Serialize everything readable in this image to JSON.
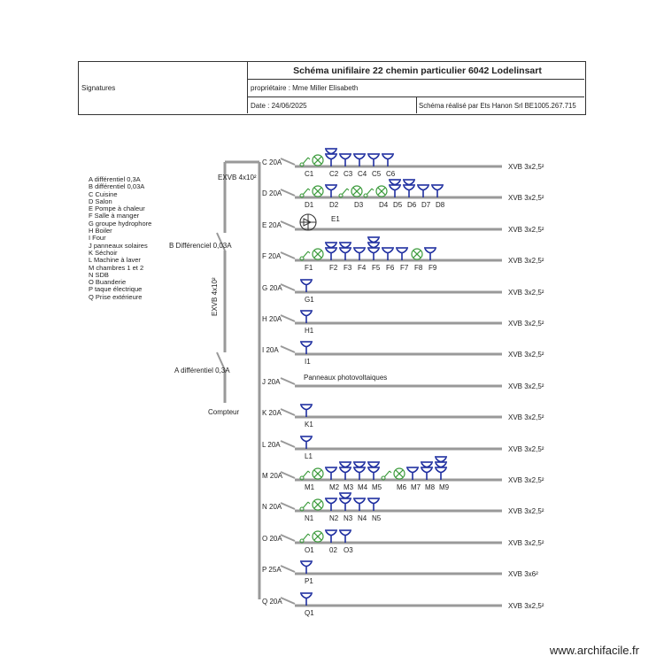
{
  "title_block": {
    "signatures": "Signatures",
    "title": "Schéma unifilaire 22 chemin particulier 6042 Lodelinsart",
    "owner": "propriétaire : Mme Miller Elisabeth",
    "date": "Date : 24/06/2025",
    "made_by": "Schéma réalisé par Ets Hanon Srl BE1005.267.715"
  },
  "legend": [
    "A différentiel 0,3A",
    "B différentiel 0,03A",
    "C Cuisine",
    "D Salon",
    "E Pompe à chaleur",
    "F Salle à manger",
    "G groupe hydrophore",
    "H Boiler",
    "I Four",
    "J panneaux solaires",
    "K Séchoir",
    "L Machine à laver",
    "M chambres 1 et 2",
    "N SDB",
    "O Buanderie",
    "P taque électrique",
    "Q Prise extérieure"
  ],
  "main": {
    "exvb_top": "EXVB 4x10²",
    "exvb_vertical": "EXVB 4x10²",
    "diff_b": "B Différenciel 0,03A",
    "diff_a": "A différentiel 0,3A",
    "meter": "Compteur"
  },
  "circuits": [
    {
      "breaker": "C 20A",
      "cable": "XVB 3x2,5²",
      "devices": [
        {
          "type": "switch",
          "label": "C1"
        },
        {
          "type": "lamp",
          "label": ""
        },
        {
          "type": "double",
          "label": "C2"
        },
        {
          "type": "socket",
          "label": "C3"
        },
        {
          "type": "socket",
          "label": "C4"
        },
        {
          "type": "socket",
          "label": "C5"
        },
        {
          "type": "socket",
          "label": "C6"
        }
      ]
    },
    {
      "breaker": "D 20A",
      "cable": "XVB 3x2,5²",
      "devices": [
        {
          "type": "switch",
          "label": "D1"
        },
        {
          "type": "lamp",
          "label": ""
        },
        {
          "type": "socket",
          "label": "D2"
        },
        {
          "type": "switch",
          "label": ""
        },
        {
          "type": "lamp",
          "label": "D3"
        },
        {
          "type": "switch",
          "label": ""
        },
        {
          "type": "lamp",
          "label": "D4"
        },
        {
          "type": "double",
          "label": "D5"
        },
        {
          "type": "double",
          "label": "D6"
        },
        {
          "type": "socket",
          "label": "D7"
        },
        {
          "type": "socket",
          "label": "D8"
        }
      ]
    },
    {
      "breaker": "E 20A",
      "cable": "XVB 3x2,5²",
      "devices": [
        {
          "type": "pump",
          "label": "E1"
        }
      ]
    },
    {
      "breaker": "F 20A",
      "cable": "XVB 3x2,5²",
      "devices": [
        {
          "type": "switch",
          "label": "F1"
        },
        {
          "type": "lamp",
          "label": ""
        },
        {
          "type": "double",
          "label": "F2"
        },
        {
          "type": "double",
          "label": "F3"
        },
        {
          "type": "socket",
          "label": "F4"
        },
        {
          "type": "triple",
          "label": "F5"
        },
        {
          "type": "socket",
          "label": "F6"
        },
        {
          "type": "socket",
          "label": "F7"
        },
        {
          "type": "lamp",
          "label": "F8"
        },
        {
          "type": "socket",
          "label": "F9"
        }
      ]
    },
    {
      "breaker": "G 20A",
      "cable": "XVB 3x2,5²",
      "devices": [
        {
          "type": "socket",
          "label": "G1"
        }
      ]
    },
    {
      "breaker": "H 20A",
      "cable": "XVB 3x2,5²",
      "devices": [
        {
          "type": "socket",
          "label": "H1"
        }
      ]
    },
    {
      "breaker": "I 20A",
      "cable": "XVB 3x2,5²",
      "devices": [
        {
          "type": "socket",
          "label": "I1"
        }
      ]
    },
    {
      "breaker": "J 20A",
      "cable": "XVB 3x2,5²",
      "note": "Panneaux photovoltaiques",
      "devices": []
    },
    {
      "breaker": "K 20A",
      "cable": "XVB 3x2,5²",
      "devices": [
        {
          "type": "socket",
          "label": "K1"
        }
      ]
    },
    {
      "breaker": "L 20A",
      "cable": "XVB 3x2,5²",
      "devices": [
        {
          "type": "socket",
          "label": "L1"
        }
      ]
    },
    {
      "breaker": "M 20A",
      "cable": "XVB 3x2,5²",
      "devices": [
        {
          "type": "switch",
          "label": "M1"
        },
        {
          "type": "lamp",
          "label": ""
        },
        {
          "type": "socket",
          "label": "M2"
        },
        {
          "type": "double",
          "label": "M3"
        },
        {
          "type": "double",
          "label": "M4"
        },
        {
          "type": "double",
          "label": "M5"
        },
        {
          "type": "switch",
          "label": ""
        },
        {
          "type": "lamp",
          "label": "M6"
        },
        {
          "type": "socket",
          "label": "M7"
        },
        {
          "type": "double",
          "label": "M8"
        },
        {
          "type": "triple",
          "label": "M9"
        }
      ]
    },
    {
      "breaker": "N 20A",
      "cable": "XVB 3x2,5²",
      "devices": [
        {
          "type": "switch",
          "label": "N1"
        },
        {
          "type": "lamp",
          "label": ""
        },
        {
          "type": "socket",
          "label": "N2"
        },
        {
          "type": "double",
          "label": "N3"
        },
        {
          "type": "socket",
          "label": "N4"
        },
        {
          "type": "socket",
          "label": "N5"
        }
      ]
    },
    {
      "breaker": "O 20A",
      "cable": "XVB 3x2,5²",
      "devices": [
        {
          "type": "switch",
          "label": "O1"
        },
        {
          "type": "lamp",
          "label": ""
        },
        {
          "type": "socket",
          "label": "02"
        },
        {
          "type": "socket",
          "label": "O3"
        }
      ]
    },
    {
      "breaker": "P 25A",
      "cable": "XVB 3x6²",
      "devices": [
        {
          "type": "socket",
          "label": "P1"
        }
      ]
    },
    {
      "breaker": "Q 20A",
      "cable": "XVB 3x2,5²",
      "devices": [
        {
          "type": "socket",
          "label": "Q1"
        }
      ]
    }
  ],
  "watermark": "www.archifacile.fr",
  "colors": {
    "socket": "#1f2fa0",
    "lamp_switch": "#3a9a3a",
    "line": "#999999"
  }
}
